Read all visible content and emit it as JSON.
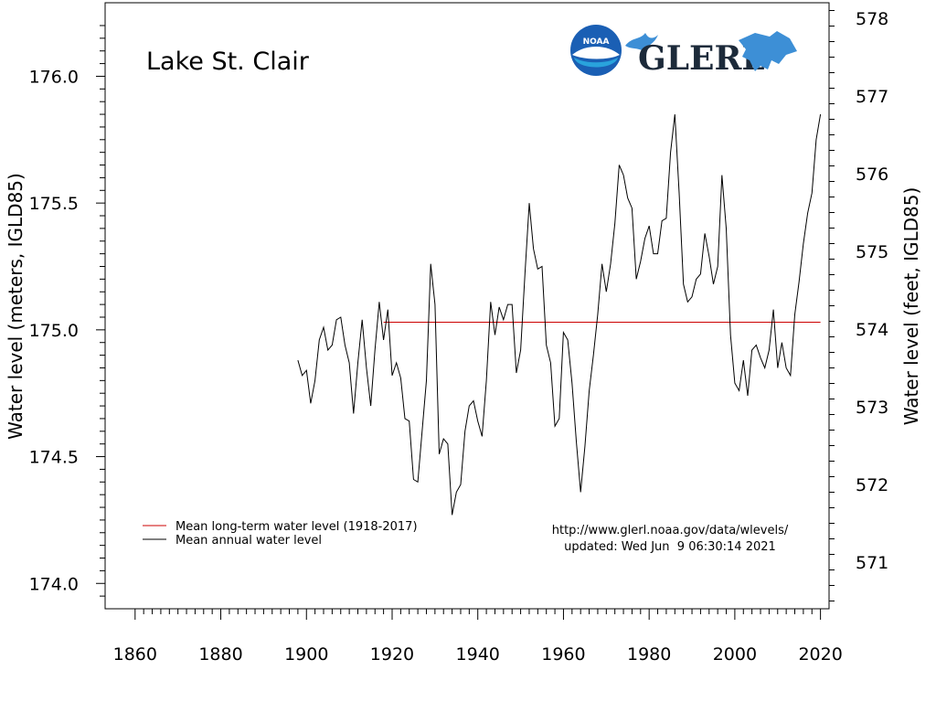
{
  "chart_data": {
    "type": "line",
    "title": "Lake St. Clair",
    "ylabel": "Water level (meters, IGLD85)",
    "y2label": "Water level (feet, IGLD85)",
    "xlabel": "",
    "xlim": [
      1853,
      2022
    ],
    "ylim": [
      173.9,
      176.29
    ],
    "y2lim": [
      570.4,
      578.2
    ],
    "x_ticks": [
      1860,
      1880,
      1900,
      1920,
      1940,
      1960,
      1980,
      2000,
      2020
    ],
    "y_ticks": [
      174.0,
      174.5,
      175.0,
      175.5,
      176.0
    ],
    "y2_ticks": [
      571,
      572,
      573,
      574,
      575,
      576,
      577,
      578
    ],
    "grid": false,
    "legend_position": "bottom-left",
    "series": [
      {
        "name": "Mean long-term water level (1918-2017)",
        "color": "#cc0000",
        "x": [
          1918,
          2020
        ],
        "y": [
          175.03,
          175.03
        ]
      },
      {
        "name": "Mean annual water level",
        "color": "#000000",
        "x": [
          1898,
          1899,
          1900,
          1901,
          1902,
          1903,
          1904,
          1905,
          1906,
          1907,
          1908,
          1909,
          1910,
          1911,
          1912,
          1913,
          1914,
          1915,
          1916,
          1917,
          1918,
          1919,
          1920,
          1921,
          1922,
          1923,
          1924,
          1925,
          1926,
          1927,
          1928,
          1929,
          1930,
          1931,
          1932,
          1933,
          1934,
          1935,
          1936,
          1937,
          1938,
          1939,
          1940,
          1941,
          1942,
          1943,
          1944,
          1945,
          1946,
          1947,
          1948,
          1949,
          1950,
          1951,
          1952,
          1953,
          1954,
          1955,
          1956,
          1957,
          1958,
          1959,
          1960,
          1961,
          1962,
          1963,
          1964,
          1965,
          1966,
          1967,
          1968,
          1969,
          1970,
          1971,
          1972,
          1973,
          1974,
          1975,
          1976,
          1977,
          1978,
          1979,
          1980,
          1981,
          1982,
          1983,
          1984,
          1985,
          1986,
          1987,
          1988,
          1989,
          1990,
          1991,
          1992,
          1993,
          1994,
          1995,
          1996,
          1997,
          1998,
          1999,
          2000,
          2001,
          2002,
          2003,
          2004,
          2005,
          2006,
          2007,
          2008,
          2009,
          2010,
          2011,
          2012,
          2013,
          2014,
          2015,
          2016,
          2017,
          2018,
          2019,
          2020
        ],
        "y": [
          174.88,
          174.82,
          174.84,
          174.71,
          174.8,
          174.96,
          175.01,
          174.92,
          174.94,
          175.04,
          175.05,
          174.94,
          174.87,
          174.67,
          174.87,
          175.04,
          174.85,
          174.7,
          174.92,
          175.11,
          174.96,
          175.08,
          174.82,
          174.87,
          174.81,
          174.65,
          174.64,
          174.41,
          174.4,
          174.6,
          174.8,
          175.26,
          175.1,
          174.51,
          174.57,
          174.55,
          174.27,
          174.36,
          174.39,
          174.6,
          174.7,
          174.72,
          174.64,
          174.58,
          174.8,
          175.11,
          174.98,
          175.09,
          175.04,
          175.1,
          175.1,
          174.83,
          174.92,
          175.22,
          175.5,
          175.32,
          175.24,
          175.25,
          174.94,
          174.87,
          174.62,
          174.65,
          174.99,
          174.96,
          174.79,
          174.56,
          174.36,
          174.54,
          174.76,
          174.9,
          175.06,
          175.26,
          175.15,
          175.26,
          175.42,
          175.65,
          175.61,
          175.52,
          175.48,
          175.2,
          175.27,
          175.36,
          175.41,
          175.3,
          175.3,
          175.43,
          175.44,
          175.7,
          175.85,
          175.54,
          175.18,
          175.11,
          175.13,
          175.2,
          175.22,
          175.38,
          175.29,
          175.18,
          175.25,
          175.61,
          175.4,
          174.98,
          174.79,
          174.76,
          174.88,
          174.74,
          174.92,
          174.94,
          174.89,
          174.85,
          174.92,
          175.08,
          174.85,
          174.95,
          174.85,
          174.82,
          175.06,
          175.19,
          175.34,
          175.46,
          175.54,
          175.75,
          175.85
        ]
      }
    ]
  },
  "legend": {
    "items": [
      {
        "label": "Mean long-term water level (1918-2017)",
        "color": "#cc0000"
      },
      {
        "label": "Mean annual water level",
        "color": "#000000"
      }
    ]
  },
  "source": {
    "url": "http://www.glerl.noaa.gov/data/wlevels/",
    "updated": "updated: Wed Jun  9 06:30:14 2021"
  },
  "logos": {
    "noaa": "NOAA",
    "glerl": "GLERL",
    "noaa_color": "#1a5fb4",
    "glerl_text_color": "#1c2a3a",
    "glerl_accent_color": "#3d8fd6"
  }
}
